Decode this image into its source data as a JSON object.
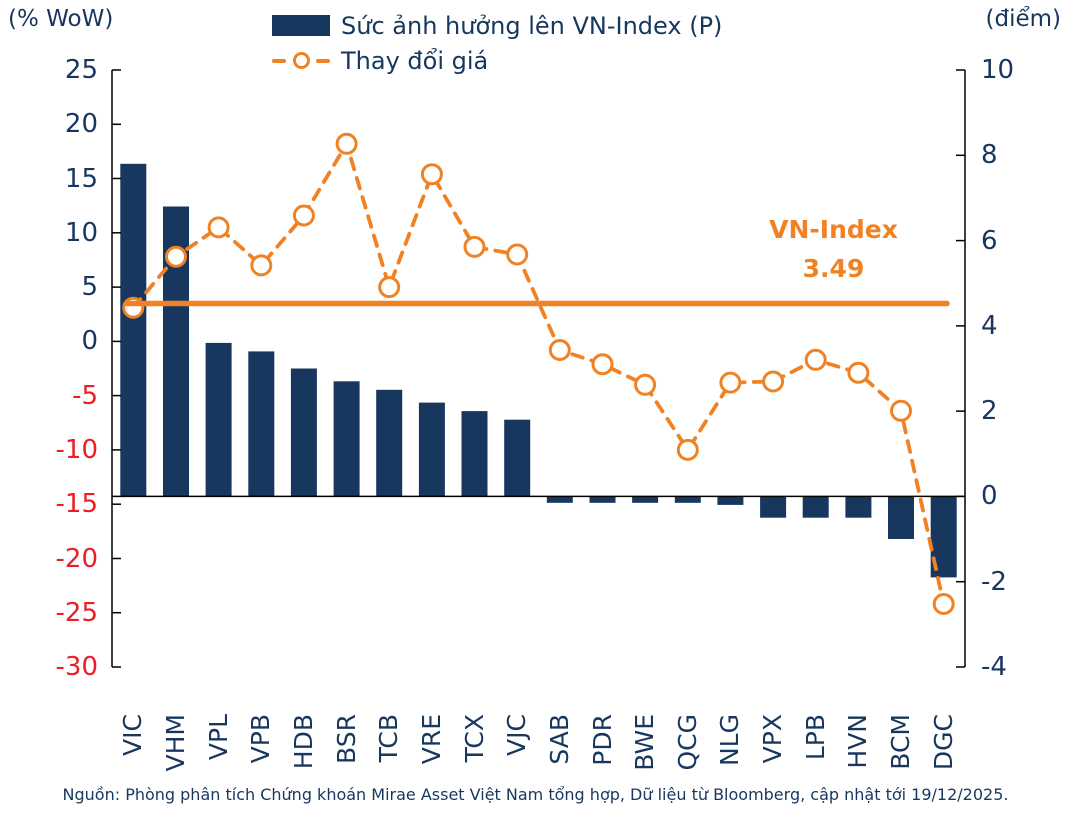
{
  "source": "Nguồn: Phòng phân tích Chứng khoán Mirae Asset Việt Nam tổng hợp, Dữ liệu từ Bloomberg, cập nhật tới 19/12/2025.",
  "colors": {
    "navy": "#17375E",
    "orange": "#F08223",
    "negative_red": "#EE1D25",
    "axis_black": "#000000",
    "marker_fill": "#FFFFFF"
  },
  "chart_data": {
    "type": "bar+line",
    "title": "",
    "categories": [
      "VIC",
      "VHM",
      "VPL",
      "VPB",
      "HDB",
      "BSR",
      "TCB",
      "VRE",
      "TCX",
      "VJC",
      "SAB",
      "PDR",
      "BWE",
      "QCG",
      "NLG",
      "VPX",
      "LPB",
      "HVN",
      "BCM",
      "DGC"
    ],
    "series": [
      {
        "name": "Sức ảnh hưởng lên VN-Index (P)",
        "type": "bar",
        "axis": "right",
        "color": "#17375E",
        "values": [
          7.8,
          6.8,
          3.6,
          3.4,
          3.0,
          2.7,
          2.5,
          2.2,
          2.0,
          1.8,
          -0.15,
          -0.15,
          -0.15,
          -0.15,
          -0.2,
          -0.5,
          -0.5,
          -0.5,
          -1.0,
          -1.9
        ]
      },
      {
        "name": "Thay đổi giá",
        "type": "line",
        "axis": "left",
        "style": "dashed, hollow circle markers",
        "color": "#F08223",
        "values": [
          3.1,
          7.8,
          10.5,
          7.0,
          11.6,
          18.2,
          5.0,
          15.4,
          8.7,
          8.0,
          -0.8,
          -2.1,
          -4.0,
          -10.0,
          -3.8,
          -3.7,
          -1.7,
          -2.9,
          -6.4,
          -24.2
        ]
      }
    ],
    "reference_line": {
      "label": "VN-Index",
      "value": 3.49,
      "value_text": "3.49",
      "axis": "left",
      "color": "#F08223"
    },
    "left_axis": {
      "label": "(% WoW)",
      "min": -30,
      "max": 25,
      "ticks": [
        25,
        20,
        15,
        10,
        5,
        0,
        -5,
        -10,
        -15,
        -20,
        -25,
        -30
      ]
    },
    "right_axis": {
      "label": "(điểm)",
      "min": -4,
      "max": 10,
      "ticks": [
        10,
        8,
        6,
        4,
        2,
        0,
        -2,
        -4
      ]
    },
    "grid": false,
    "legend_position": "top-center"
  }
}
